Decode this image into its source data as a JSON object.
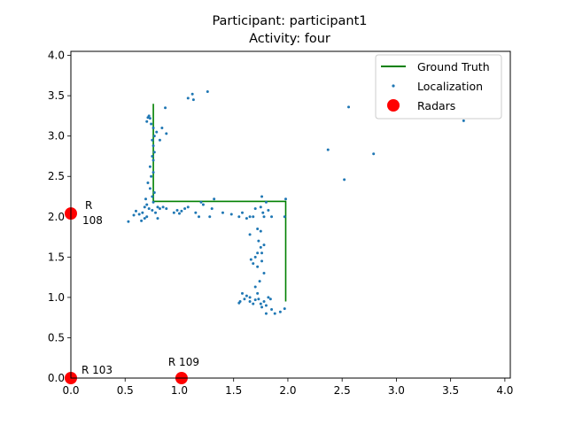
{
  "chart_data": {
    "type": "scatter",
    "title_line1": "Participant: participant1",
    "title_line2": "Activity: four",
    "xlim": [
      0,
      4.05
    ],
    "ylim": [
      0,
      4.05
    ],
    "x_ticks": [
      0.0,
      0.5,
      1.0,
      1.5,
      2.0,
      2.5,
      3.0,
      3.5,
      4.0
    ],
    "y_ticks": [
      0.0,
      0.5,
      1.0,
      1.5,
      2.0,
      2.5,
      3.0,
      3.5,
      4.0
    ],
    "x_tick_labels": [
      "0.0",
      "0.5",
      "1.0",
      "1.5",
      "2.0",
      "2.5",
      "3.0",
      "3.5",
      "4.0"
    ],
    "y_tick_labels": [
      "0.0",
      "0.5",
      "1.0",
      "1.5",
      "2.0",
      "2.5",
      "3.0",
      "3.5",
      "4.0"
    ],
    "legend_placement": "top-right",
    "ground_truth": {
      "name": "Ground Truth",
      "color": "#008000",
      "points": [
        [
          0.76,
          3.4
        ],
        [
          0.76,
          2.19
        ],
        [
          1.98,
          2.19
        ],
        [
          1.98,
          0.95
        ]
      ]
    },
    "localization": {
      "name": "Localization",
      "color": "#1f77b4",
      "points": [
        [
          0.71,
          3.23
        ],
        [
          0.72,
          3.25
        ],
        [
          0.73,
          3.22
        ],
        [
          0.7,
          3.18
        ],
        [
          0.74,
          3.15
        ],
        [
          0.76,
          3.1
        ],
        [
          0.79,
          3.05
        ],
        [
          0.77,
          3.0
        ],
        [
          0.75,
          2.95
        ],
        [
          0.76,
          2.88
        ],
        [
          0.77,
          2.8
        ],
        [
          0.75,
          2.75
        ],
        [
          0.76,
          2.7
        ],
        [
          0.73,
          2.62
        ],
        [
          0.76,
          2.55
        ],
        [
          0.74,
          2.5
        ],
        [
          0.71,
          2.42
        ],
        [
          0.73,
          2.35
        ],
        [
          0.77,
          2.3
        ],
        [
          0.75,
          2.25
        ],
        [
          0.69,
          2.22
        ],
        [
          0.7,
          2.15
        ],
        [
          0.68,
          2.12
        ],
        [
          0.72,
          2.1
        ],
        [
          0.75,
          2.08
        ],
        [
          0.66,
          2.05
        ],
        [
          0.63,
          2.03
        ],
        [
          0.6,
          2.07
        ],
        [
          0.58,
          2.02
        ],
        [
          0.53,
          1.94
        ],
        [
          0.65,
          1.95
        ],
        [
          0.7,
          2.0
        ],
        [
          0.68,
          1.98
        ],
        [
          0.78,
          2.05
        ],
        [
          0.8,
          1.98
        ],
        [
          0.82,
          2.1
        ],
        [
          0.85,
          2.12
        ],
        [
          0.88,
          2.1
        ],
        [
          0.8,
          2.12
        ],
        [
          0.76,
          2.18
        ],
        [
          0.87,
          3.35
        ],
        [
          0.84,
          3.1
        ],
        [
          0.88,
          3.03
        ],
        [
          0.82,
          2.95
        ],
        [
          1.08,
          3.47
        ],
        [
          1.12,
          3.52
        ],
        [
          1.13,
          3.45
        ],
        [
          1.26,
          3.55
        ],
        [
          0.95,
          2.05
        ],
        [
          0.98,
          2.08
        ],
        [
          1.02,
          2.07
        ],
        [
          1.05,
          2.1
        ],
        [
          1.0,
          2.04
        ],
        [
          1.08,
          2.12
        ],
        [
          1.15,
          2.05
        ],
        [
          1.18,
          2.0
        ],
        [
          1.2,
          2.18
        ],
        [
          1.22,
          2.15
        ],
        [
          1.28,
          2.0
        ],
        [
          1.3,
          2.1
        ],
        [
          1.32,
          2.22
        ],
        [
          1.4,
          2.05
        ],
        [
          1.48,
          2.03
        ],
        [
          1.55,
          2.0
        ],
        [
          1.58,
          2.05
        ],
        [
          1.62,
          1.98
        ],
        [
          1.65,
          2.0
        ],
        [
          1.68,
          2.0
        ],
        [
          1.7,
          2.1
        ],
        [
          1.75,
          2.12
        ],
        [
          1.77,
          2.05
        ],
        [
          1.78,
          2.0
        ],
        [
          1.76,
          2.25
        ],
        [
          1.8,
          2.18
        ],
        [
          1.82,
          2.08
        ],
        [
          1.85,
          2.0
        ],
        [
          1.98,
          2.22
        ],
        [
          1.97,
          2.0
        ],
        [
          1.65,
          1.78
        ],
        [
          1.72,
          1.85
        ],
        [
          1.75,
          1.82
        ],
        [
          1.73,
          1.7
        ],
        [
          1.75,
          1.62
        ],
        [
          1.78,
          1.65
        ],
        [
          1.72,
          1.55
        ],
        [
          1.76,
          1.55
        ],
        [
          1.7,
          1.5
        ],
        [
          1.66,
          1.47
        ],
        [
          1.68,
          1.42
        ],
        [
          1.72,
          1.38
        ],
        [
          1.76,
          1.45
        ],
        [
          1.78,
          1.3
        ],
        [
          1.74,
          1.2
        ],
        [
          1.7,
          1.13
        ],
        [
          1.72,
          1.05
        ],
        [
          1.65,
          1.0
        ],
        [
          1.62,
          1.02
        ],
        [
          1.58,
          1.05
        ],
        [
          1.56,
          0.95
        ],
        [
          1.55,
          0.93
        ],
        [
          1.6,
          0.98
        ],
        [
          1.65,
          0.95
        ],
        [
          1.7,
          0.97
        ],
        [
          1.73,
          0.98
        ],
        [
          1.75,
          0.92
        ],
        [
          1.76,
          0.88
        ],
        [
          1.78,
          0.95
        ],
        [
          1.8,
          0.9
        ],
        [
          1.82,
          1.0
        ],
        [
          1.85,
          0.85
        ],
        [
          1.88,
          0.8
        ],
        [
          1.93,
          0.82
        ],
        [
          1.97,
          0.86
        ],
        [
          1.8,
          0.8
        ],
        [
          1.84,
          0.98
        ],
        [
          1.68,
          0.92
        ],
        [
          2.37,
          2.83
        ],
        [
          2.52,
          2.46
        ],
        [
          2.56,
          3.36
        ],
        [
          2.79,
          2.78
        ],
        [
          3.62,
          3.19
        ]
      ]
    },
    "radars": {
      "name": "Radars",
      "color": "#ff0000",
      "points": [
        {
          "x": 0.0,
          "y": 2.04,
          "label_line1": "R",
          "label_line2": "108"
        },
        {
          "x": 0.0,
          "y": 0.0,
          "label_line1": "R 103",
          "label_line2": ""
        },
        {
          "x": 1.02,
          "y": 0.0,
          "label_line1": "R 109",
          "label_line2": ""
        }
      ]
    }
  }
}
